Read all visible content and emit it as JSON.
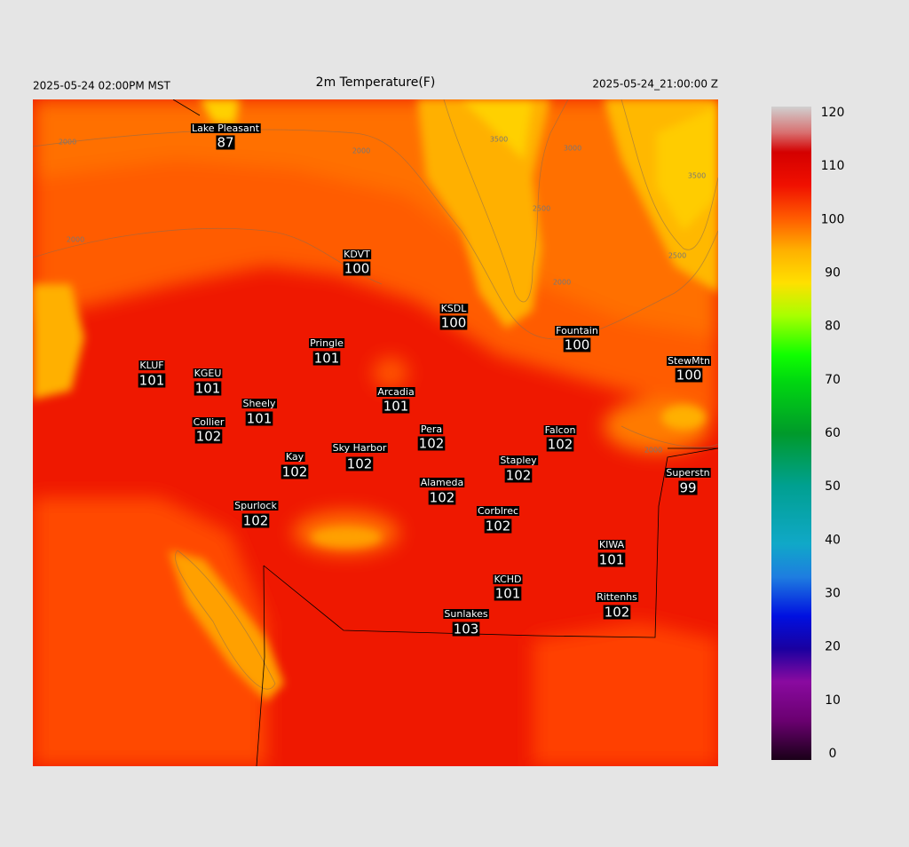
{
  "header": {
    "left": "2025-05-24 02:00PM MST",
    "title": "2m Temperature(F)",
    "right": "2025-05-24_21:00:00 Z"
  },
  "stations": [
    {
      "name": "Lake Pleasant",
      "value": 87
    },
    {
      "name": "KDVT",
      "value": 100
    },
    {
      "name": "KSDL",
      "value": 100
    },
    {
      "name": "Fountain",
      "value": 100
    },
    {
      "name": "Pringle",
      "value": 101
    },
    {
      "name": "KLUF",
      "value": 101
    },
    {
      "name": "KGEU",
      "value": 101
    },
    {
      "name": "StewMtn",
      "value": 100
    },
    {
      "name": "Arcadia",
      "value": 101
    },
    {
      "name": "Sheely",
      "value": 101
    },
    {
      "name": "Collier",
      "value": 102
    },
    {
      "name": "Pera",
      "value": 102
    },
    {
      "name": "Falcon",
      "value": 102
    },
    {
      "name": "Sky Harbor",
      "value": 102
    },
    {
      "name": "Kay",
      "value": 102
    },
    {
      "name": "Stapley",
      "value": 102
    },
    {
      "name": "Superstn",
      "value": 99
    },
    {
      "name": "Alameda",
      "value": 102
    },
    {
      "name": "Spurlock",
      "value": 102
    },
    {
      "name": "Corblrec",
      "value": 102
    },
    {
      "name": "KIWA",
      "value": 101
    },
    {
      "name": "KCHD",
      "value": 101
    },
    {
      "name": "Rittenhs",
      "value": 102
    },
    {
      "name": "Sunlakes",
      "value": 103
    }
  ],
  "contour_labels": [
    "2000",
    "2000",
    "3500",
    "3000",
    "3500",
    "2500",
    "2500",
    "2000",
    "2000",
    "2000"
  ],
  "colorbar": {
    "lim": [
      0,
      120
    ],
    "ticks": [
      0,
      10,
      20,
      30,
      40,
      50,
      60,
      70,
      80,
      90,
      100,
      110,
      120
    ]
  }
}
